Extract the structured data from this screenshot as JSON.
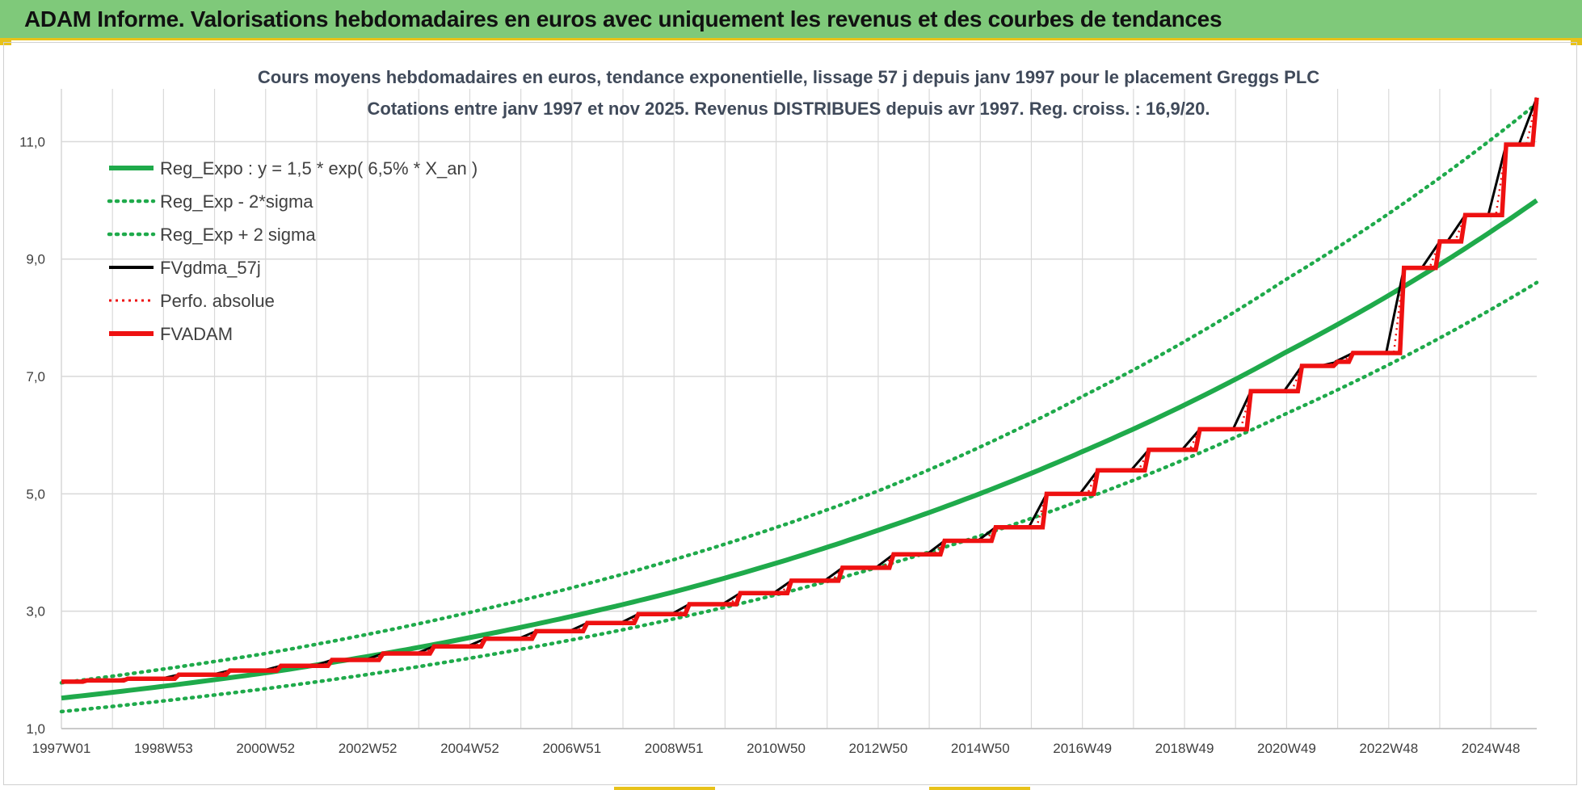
{
  "banner": {
    "title": "ADAM Informe. Valorisations hebdomadaires en euros avec uniquement les revenus et des courbes de tendances"
  },
  "colors": {
    "banner_bg": "#7fc97a",
    "accent_yellow": "#e8c21a",
    "green": "#1faa4b",
    "black": "#000000",
    "red": "#ee1111",
    "grid": "#d9d9d9"
  },
  "chart_data": {
    "type": "line",
    "title": [
      "Cours moyens hebdomadaires en euros, tendance exponentielle, lissage 57 j depuis janv 1997 pour le placement Greggs PLC",
      "Cotations entre janv 1997 et nov 2025. Revenus DISTRIBUES depuis avr 1997.  Reg. croiss. : 16,9/20."
    ],
    "xlabel": "",
    "ylabel": "",
    "x_range": [
      1997.0,
      2025.9
    ],
    "ylim": [
      1.0,
      11.9
    ],
    "grid": true,
    "legend_position": "top-left",
    "x_tick_labels": [
      "1997W01",
      "1998W53",
      "2000W52",
      "2002W52",
      "2004W52",
      "2006W51",
      "2008W51",
      "2010W50",
      "2012W50",
      "2014W50",
      "2016W49",
      "2018W49",
      "2020W49",
      "2022W48",
      "2024W48"
    ],
    "x_tick_years": [
      1997.0,
      1999.0,
      2001.0,
      2003.0,
      2005.0,
      2007.0,
      2009.0,
      2011.0,
      2013.0,
      2015.0,
      2017.0,
      2019.0,
      2021.0,
      2023.0,
      2025.0
    ],
    "y_tick_labels": [
      "1,0",
      "3,0",
      "5,0",
      "7,0",
      "9,0",
      "11,0"
    ],
    "y_ticks": [
      1.0,
      3.0,
      5.0,
      7.0,
      9.0,
      11.0
    ],
    "series": [
      {
        "name": "Reg_Expo : y = 1,5 * exp( 6,5% *  X_an )",
        "style": "solid-green",
        "x": [
          1997.0,
          2001.0,
          2005.0,
          2009.0,
          2013.0,
          2017.0,
          2021.0,
          2025.9
        ],
        "values": [
          1.52,
          1.95,
          2.55,
          3.33,
          4.38,
          5.72,
          7.42,
          10.0
        ]
      },
      {
        "name": "Reg_Exp - 2*sigma",
        "style": "dotted-green",
        "x": [
          1997.0,
          2001.0,
          2005.0,
          2009.0,
          2013.0,
          2017.0,
          2021.0,
          2025.9
        ],
        "values": [
          1.29,
          1.68,
          2.2,
          2.87,
          3.75,
          4.9,
          6.37,
          8.6
        ]
      },
      {
        "name": "Reg_Exp + 2 sigma",
        "style": "dotted-green",
        "x": [
          1997.0,
          2001.0,
          2005.0,
          2009.0,
          2013.0,
          2017.0,
          2021.0,
          2025.9
        ],
        "values": [
          1.78,
          2.28,
          2.98,
          3.88,
          5.05,
          6.66,
          8.66,
          11.65
        ]
      },
      {
        "name": "FVgdma_57j",
        "style": "solid-black-thin",
        "x": [
          1997.0,
          1997.5,
          1998.3,
          1999.3,
          2000.3,
          2001.3,
          2002.3,
          2003.3,
          2004.3,
          2005.3,
          2006.3,
          2007.3,
          2008.3,
          2009.3,
          2010.3,
          2011.3,
          2012.3,
          2013.3,
          2014.3,
          2015.3,
          2016.3,
          2017.3,
          2018.3,
          2019.3,
          2020.3,
          2021.3,
          2022.0,
          2022.3,
          2023.3,
          2024.0,
          2024.5,
          2025.3,
          2025.9
        ],
        "values": [
          1.8,
          1.82,
          1.85,
          1.92,
          1.99,
          2.07,
          2.17,
          2.28,
          2.4,
          2.53,
          2.66,
          2.8,
          2.95,
          3.12,
          3.31,
          3.52,
          3.74,
          3.97,
          4.2,
          4.43,
          5.0,
          5.4,
          5.75,
          6.1,
          6.75,
          7.18,
          7.25,
          7.4,
          8.85,
          9.3,
          9.75,
          10.95,
          11.75
        ]
      },
      {
        "name": "Perfo. absolue",
        "style": "dotted-red",
        "x": [
          1997.0,
          1997.5,
          1998.3,
          1999.3,
          2000.3,
          2001.3,
          2002.3,
          2003.3,
          2004.3,
          2005.3,
          2006.3,
          2007.3,
          2008.3,
          2009.3,
          2010.3,
          2011.3,
          2012.3,
          2013.3,
          2014.3,
          2015.3,
          2016.3,
          2017.3,
          2018.3,
          2019.3,
          2020.3,
          2021.3,
          2022.0,
          2022.3,
          2023.3,
          2024.0,
          2024.5,
          2025.3,
          2025.9
        ],
        "values": [
          1.8,
          1.82,
          1.85,
          1.92,
          1.99,
          2.07,
          2.17,
          2.28,
          2.4,
          2.53,
          2.66,
          2.8,
          2.95,
          3.12,
          3.31,
          3.52,
          3.74,
          3.97,
          4.2,
          4.43,
          5.0,
          5.4,
          5.75,
          6.1,
          6.75,
          7.18,
          7.25,
          7.4,
          8.85,
          9.3,
          9.75,
          10.95,
          11.75
        ]
      },
      {
        "name": "FVADAM",
        "style": "step-red",
        "x": [
          1997.0,
          1997.5,
          1998.3,
          1999.3,
          2000.3,
          2001.3,
          2002.3,
          2003.3,
          2004.3,
          2005.3,
          2006.3,
          2007.3,
          2008.3,
          2009.3,
          2010.3,
          2011.3,
          2012.3,
          2013.3,
          2014.3,
          2015.3,
          2016.3,
          2017.3,
          2018.3,
          2019.3,
          2020.3,
          2021.3,
          2022.0,
          2022.3,
          2023.3,
          2024.0,
          2024.5,
          2025.3,
          2025.9
        ],
        "values": [
          1.8,
          1.82,
          1.85,
          1.92,
          1.99,
          2.07,
          2.17,
          2.28,
          2.4,
          2.53,
          2.66,
          2.8,
          2.95,
          3.12,
          3.31,
          3.52,
          3.74,
          3.97,
          4.2,
          4.43,
          5.0,
          5.4,
          5.75,
          6.1,
          6.75,
          7.18,
          7.25,
          7.4,
          8.85,
          9.3,
          9.75,
          10.95,
          11.75
        ]
      }
    ]
  }
}
